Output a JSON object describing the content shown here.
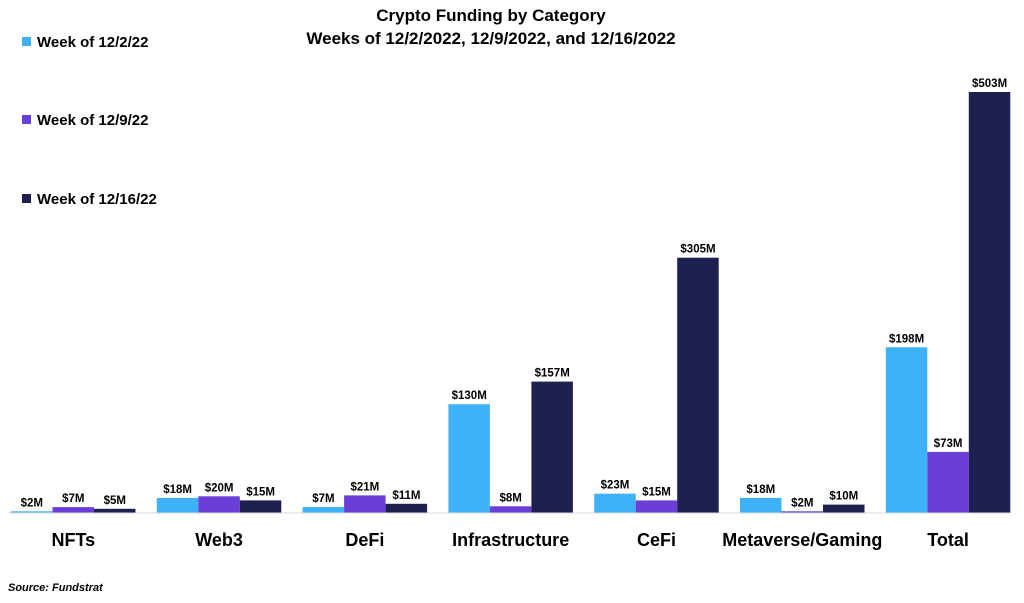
{
  "chart_data": {
    "type": "bar",
    "title": "Crypto Funding by Category",
    "subtitle": "Weeks of 12/2/2022, 12/9/2022, and 12/16/2022",
    "categories": [
      "NFTs",
      "Web3",
      "DeFi",
      "Infrastructure",
      "CeFi",
      "Metaverse/Gaming",
      "Total"
    ],
    "series": [
      {
        "name": "Week of 12/2/22",
        "color": "#3FB1F7",
        "values": [
          2,
          18,
          7,
          130,
          23,
          18,
          198
        ],
        "labels": [
          "$2M",
          "$18M",
          "$7M",
          "$130M",
          "$23M",
          "$18M",
          "$198M"
        ]
      },
      {
        "name": "Week of 12/9/22",
        "color": "#6A3FD8",
        "values": [
          7,
          20,
          21,
          8,
          15,
          2,
          73
        ],
        "labels": [
          "$7M",
          "$20M",
          "$21M",
          "$8M",
          "$15M",
          "$2M",
          "$73M"
        ]
      },
      {
        "name": "Week of 12/16/22",
        "color": "#1E2050",
        "values": [
          5,
          15,
          11,
          157,
          305,
          10,
          503
        ],
        "labels": [
          "$5M",
          "$15M",
          "$11M",
          "$157M",
          "$305M",
          "$10M",
          "$503M"
        ]
      }
    ],
    "ylim": [
      0,
      503
    ],
    "xlabel": "",
    "ylabel": "",
    "grid": false,
    "legend_position": "top-left",
    "source": "Source: Fundstrat"
  }
}
